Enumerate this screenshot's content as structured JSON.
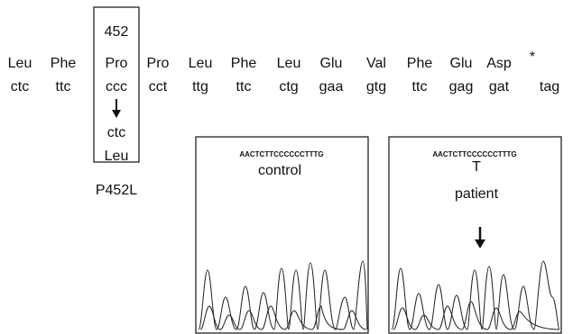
{
  "before": [
    {
      "aa": "Leu",
      "codon": "ctc"
    },
    {
      "aa": "Phe",
      "codon": "ttc"
    }
  ],
  "mutation": {
    "position": "452",
    "aa": "Pro",
    "codon": "ccc",
    "new_codon": "ctc",
    "new_aa": "Leu",
    "label": "P452L"
  },
  "after": [
    {
      "aa": "Pro",
      "codon": "cct"
    },
    {
      "aa": "Leu",
      "codon": "ttg"
    },
    {
      "aa": "Phe",
      "codon": "ttc"
    },
    {
      "aa": "Leu",
      "codon": "ctg"
    },
    {
      "aa": "Glu",
      "codon": "gaa"
    },
    {
      "aa": "Val",
      "codon": "gtg"
    },
    {
      "aa": "Phe",
      "codon": "ttc"
    },
    {
      "aa": "Glu",
      "codon": "gag"
    },
    {
      "aa": "Asp",
      "codon": "gat"
    },
    {
      "aa": "*",
      "codon": "tag"
    }
  ],
  "panels": [
    {
      "sequence": "AACTCTTCCCCCCTTTG",
      "label": "control"
    },
    {
      "sequence": "AACTCTTCCCCCCTTTG",
      "base": "T",
      "label": "patient"
    }
  ]
}
